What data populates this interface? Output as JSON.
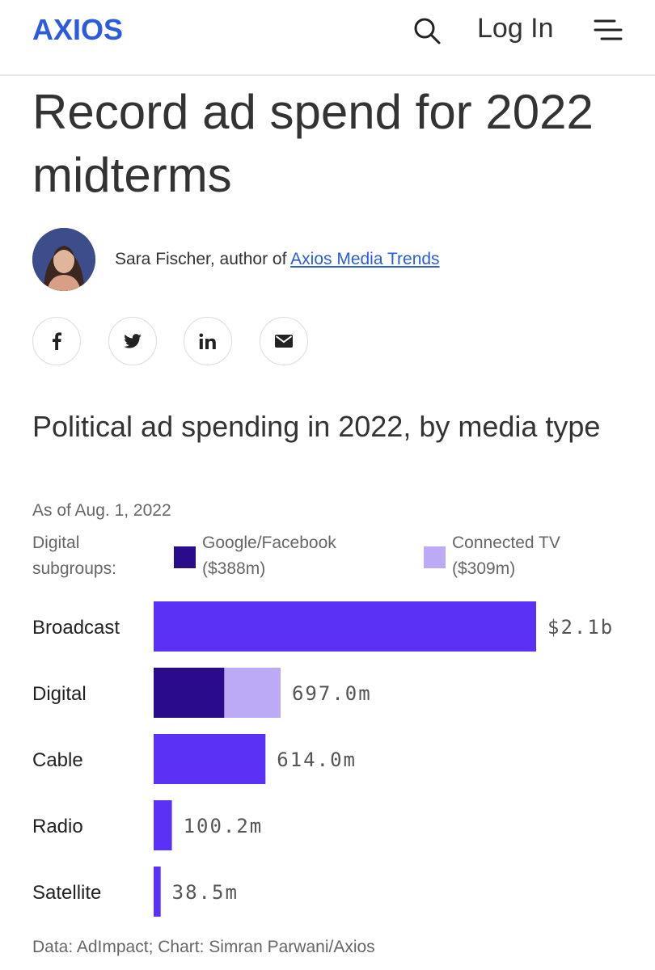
{
  "header": {
    "logo_text": "AXIOS",
    "login_label": "Log In",
    "search_icon": "search-icon",
    "menu_icon": "hamburger-menu-icon"
  },
  "article": {
    "headline": "Record ad spend for 2022 midterms",
    "author": {
      "byline_prefix": "Sara Fischer, author of",
      "byline_link": "Axios Media Trends"
    },
    "share_icons": [
      "facebook-icon",
      "twitter-icon",
      "linkedin-icon",
      "email-icon"
    ]
  },
  "chart_data": {
    "type": "bar",
    "orientation": "horizontal",
    "title": "Political ad spending in 2022, by media type",
    "subtitle": "As of Aug. 1, 2022",
    "legend_title": "Digital subgroups:",
    "legend": [
      {
        "line1": "Google/Facebook",
        "line2": "($388m)",
        "color": "#2a0c8a"
      },
      {
        "line1": "Connected TV",
        "line2": "($309m)",
        "color": "#bcaaf7"
      }
    ],
    "categories": [
      "Broadcast",
      "Digital",
      "Cable",
      "Radio",
      "Satellite"
    ],
    "values": [
      2100,
      697.0,
      614.0,
      100.2,
      38.5
    ],
    "value_labels": [
      "$2.1b",
      "697.0m",
      "614.0m",
      "100.2m",
      "38.5m"
    ],
    "unit": "millions of dollars",
    "digital_breakdown": [
      {
        "name": "Google/Facebook",
        "value": 388
      },
      {
        "name": "Connected TV",
        "value": 309
      }
    ],
    "bar_color": "#5b32f5",
    "source": "Data: AdImpact; Chart: Simran Parwani/Axios"
  }
}
